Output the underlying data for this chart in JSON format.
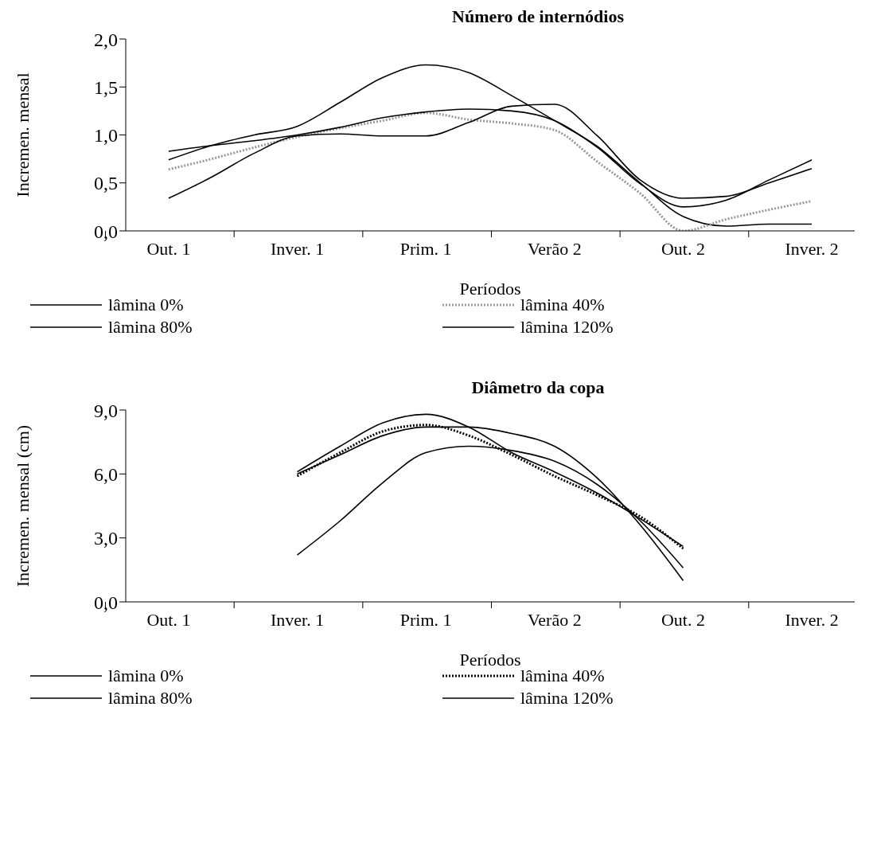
{
  "chart_data": [
    {
      "type": "line",
      "title": "Número de internódios",
      "xlabel": "Períodos",
      "ylabel": "Incremen. mensal",
      "categories": [
        null,
        "Out. 1",
        null,
        null,
        "Inver. 1",
        null,
        null,
        "Prim. 1",
        null,
        null,
        "Verão 2",
        null,
        null,
        "Out. 2",
        null,
        null,
        "Inver. 2",
        null
      ],
      "ylim": [
        0,
        2
      ],
      "yticks": [
        {
          "value": 0,
          "label": "0,0"
        },
        {
          "value": 0.5,
          "label": "0,5"
        },
        {
          "value": 1,
          "label": "1,0"
        },
        {
          "value": 1.5,
          "label": "1,5"
        },
        {
          "value": 2,
          "label": "2,0"
        }
      ],
      "grid": false,
      "legend": "bottom",
      "marker": "none",
      "series": [
        {
          "name": "lâmina 0%",
          "color": "#000000",
          "line_style": "solid",
          "values": [
            null,
            0.74,
            0.89,
            1.0,
            1.09,
            1.34,
            1.6,
            1.73,
            1.65,
            1.41,
            1.15,
            0.88,
            0.5,
            0.15,
            0.05,
            0.07,
            0.07,
            null
          ]
        },
        {
          "name": "lâmina 40%",
          "color": "#999999",
          "line_style": "dotted",
          "values": [
            null,
            0.64,
            0.75,
            0.87,
            0.98,
            1.07,
            1.15,
            1.23,
            1.16,
            1.12,
            1.05,
            0.72,
            0.39,
            0.0,
            0.12,
            0.22,
            0.31,
            null
          ]
        },
        {
          "name": "lâmina 80%",
          "color": "#000000",
          "line_style": "solid",
          "values": [
            null,
            0.83,
            0.89,
            0.94,
            1.0,
            1.08,
            1.18,
            1.24,
            1.27,
            1.25,
            1.15,
            0.87,
            0.49,
            0.25,
            0.32,
            0.53,
            0.74,
            null
          ]
        },
        {
          "name": "lâmina 120%",
          "color": "#000000",
          "line_style": "solid",
          "values": [
            null,
            0.34,
            0.56,
            0.81,
            0.99,
            1.01,
            0.99,
            0.99,
            1.13,
            1.3,
            1.32,
            0.99,
            0.53,
            0.34,
            0.36,
            0.5,
            0.65,
            null
          ]
        }
      ]
    },
    {
      "type": "line",
      "title": "Diâmetro da copa",
      "xlabel": "Períodos",
      "ylabel": "Incremen. mensal (cm)",
      "categories": [
        null,
        "Out. 1",
        null,
        null,
        "Inver. 1",
        null,
        null,
        "Prim. 1",
        null,
        null,
        "Verão 2",
        null,
        null,
        "Out. 2",
        null,
        null,
        "Inver. 2",
        null
      ],
      "ylim": [
        0,
        9
      ],
      "yticks": [
        {
          "value": 0,
          "label": "0,0"
        },
        {
          "value": 3,
          "label": "3,0"
        },
        {
          "value": 6,
          "label": "6,0"
        },
        {
          "value": 9,
          "label": "9,0"
        }
      ],
      "grid": false,
      "legend": "bottom",
      "marker": "none",
      "series": [
        {
          "name": "lâmina 0%",
          "color": "#000000",
          "line_style": "solid",
          "values": [
            null,
            null,
            null,
            null,
            2.2,
            3.8,
            5.6,
            7.0,
            7.3,
            7.1,
            6.6,
            5.5,
            3.8,
            1.6,
            null,
            null,
            null,
            null
          ]
        },
        {
          "name": "lâmina 40%",
          "color": "#000000",
          "line_style": "dotted",
          "values": [
            null,
            null,
            null,
            null,
            5.9,
            7.0,
            8.0,
            8.3,
            7.8,
            6.9,
            5.9,
            5.0,
            4.0,
            2.5,
            null,
            null,
            null,
            null
          ]
        },
        {
          "name": "lâmina 80%",
          "color": "#000000",
          "line_style": "solid",
          "values": [
            null,
            null,
            null,
            null,
            6.0,
            6.9,
            7.8,
            8.2,
            8.2,
            7.9,
            7.3,
            5.8,
            3.6,
            1.0,
            null,
            null,
            null,
            null
          ]
        },
        {
          "name": "lâmina 120%",
          "color": "#000000",
          "line_style": "solid",
          "values": [
            null,
            null,
            null,
            null,
            6.1,
            7.3,
            8.4,
            8.8,
            8.2,
            7.0,
            6.1,
            5.1,
            3.9,
            2.6,
            null,
            null,
            null,
            null
          ]
        }
      ]
    }
  ]
}
